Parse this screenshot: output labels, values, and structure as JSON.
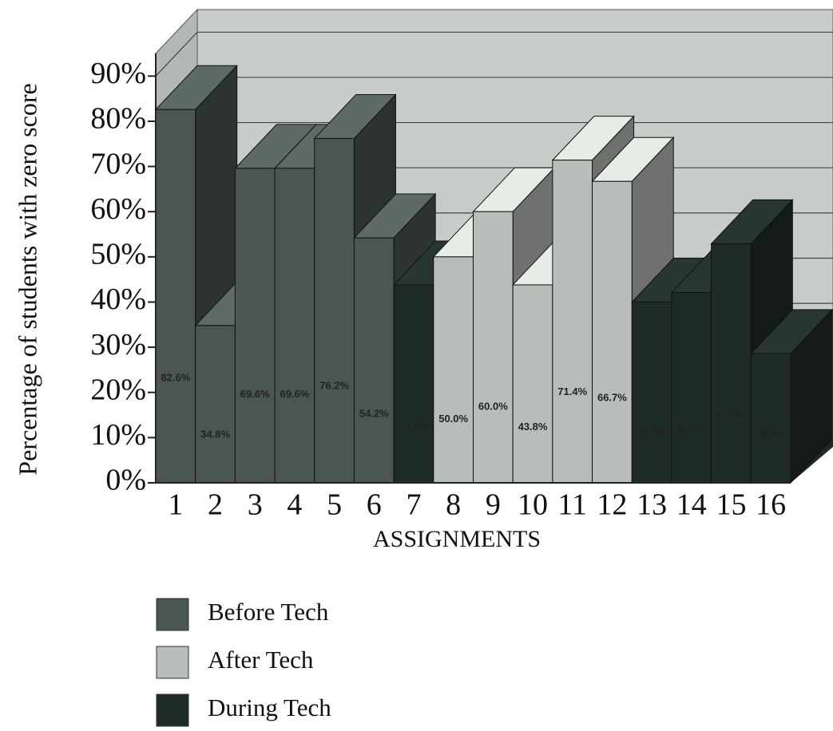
{
  "chart_data": {
    "type": "bar3d",
    "y_label": "Percentage of students with zero score",
    "x_label": "ASSIGNMENTS",
    "categories": [
      "1",
      "2",
      "3",
      "4",
      "5",
      "6",
      "7",
      "8",
      "9",
      "10",
      "11",
      "12",
      "13",
      "14",
      "15",
      "16"
    ],
    "series": [
      {
        "name": "Before Tech",
        "color": "#4b5551",
        "values": [
          82.6,
          34.8,
          69.6,
          69.6,
          76.2,
          54.2,
          null,
          null,
          null,
          null,
          null,
          null,
          null,
          null,
          null,
          null
        ],
        "value_labels": [
          "82.6%",
          "34.8%",
          "69.6%",
          "69.6%",
          "76.2%",
          "54.2%",
          null,
          null,
          null,
          null,
          null,
          null,
          null,
          null,
          null,
          null
        ]
      },
      {
        "name": "After Tech",
        "color": "#b9bdb9",
        "values": [
          null,
          null,
          null,
          null,
          null,
          null,
          null,
          50.0,
          60.0,
          43.8,
          71.4,
          66.7,
          null,
          null,
          null,
          null
        ],
        "value_labels": [
          null,
          null,
          null,
          null,
          null,
          null,
          null,
          "50.0%",
          "60.0%",
          "43.8%",
          "71.4%",
          "66.7%",
          null,
          null,
          null,
          null
        ]
      },
      {
        "name": "During Tech",
        "color": "#1f2b27",
        "values": [
          null,
          null,
          null,
          null,
          null,
          null,
          43.8,
          null,
          null,
          null,
          null,
          null,
          40.0,
          42.1,
          52.9,
          28.6
        ],
        "value_labels": [
          null,
          null,
          null,
          null,
          null,
          null,
          "43.8%",
          null,
          null,
          null,
          null,
          null,
          "40.0%",
          "42.1%",
          "52.9%",
          "28.6%"
        ]
      }
    ],
    "ylim": [
      0,
      95
    ],
    "yticks": [
      {
        "value": 0,
        "label": "0%"
      },
      {
        "value": 10,
        "label": "10%"
      },
      {
        "value": 20,
        "label": "20%"
      },
      {
        "value": 30,
        "label": "30%"
      },
      {
        "value": 40,
        "label": "40%"
      },
      {
        "value": 50,
        "label": "50%"
      },
      {
        "value": 60,
        "label": "60%"
      },
      {
        "value": 70,
        "label": "70%"
      },
      {
        "value": 80,
        "label": "80%"
      },
      {
        "value": 90,
        "label": "90%"
      }
    ],
    "grid": true
  }
}
